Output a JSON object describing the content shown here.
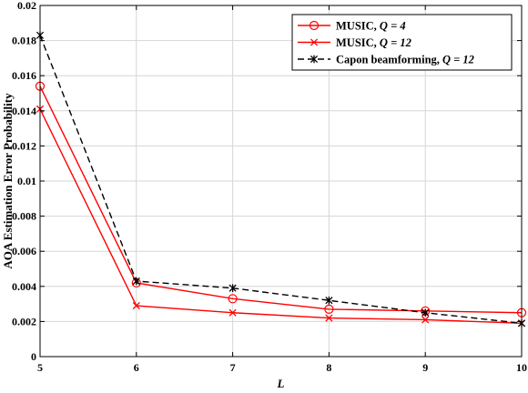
{
  "chart_data": {
    "type": "line",
    "title": "",
    "xlabel": "L",
    "ylabel": "AOA Estimation Error Probability",
    "x": [
      5,
      6,
      7,
      8,
      9,
      10
    ],
    "xlim": [
      5,
      10
    ],
    "ylim": [
      0,
      0.02
    ],
    "xticks": [
      "5",
      "6",
      "7",
      "8",
      "9",
      "10"
    ],
    "yticks": [
      "0",
      "0.002",
      "0.004",
      "0.006",
      "0.008",
      "0.01",
      "0.012",
      "0.014",
      "0.016",
      "0.018",
      "0.02"
    ],
    "grid": true,
    "legend_position": "top-right",
    "series": [
      {
        "name": "MUSIC, Q = 4",
        "legend_prefix": "MUSIC, ",
        "legend_var": "Q = 4",
        "color": "#ff0000",
        "line": "solid",
        "marker": "circle",
        "values": [
          0.0154,
          0.0042,
          0.0033,
          0.0027,
          0.0026,
          0.0025
        ]
      },
      {
        "name": "MUSIC, Q = 12",
        "legend_prefix": "MUSIC, ",
        "legend_var": "Q = 12",
        "color": "#ff0000",
        "line": "solid",
        "marker": "x",
        "values": [
          0.0141,
          0.0029,
          0.0025,
          0.0022,
          0.0021,
          0.0019
        ]
      },
      {
        "name": "Capon beamforming, Q = 12",
        "legend_prefix": "Capon beamforming, ",
        "legend_var": "Q = 12",
        "color": "#000000",
        "line": "dashed",
        "marker": "star",
        "values": [
          0.0183,
          0.0043,
          0.0039,
          0.0032,
          0.0025,
          0.0019
        ]
      }
    ]
  }
}
